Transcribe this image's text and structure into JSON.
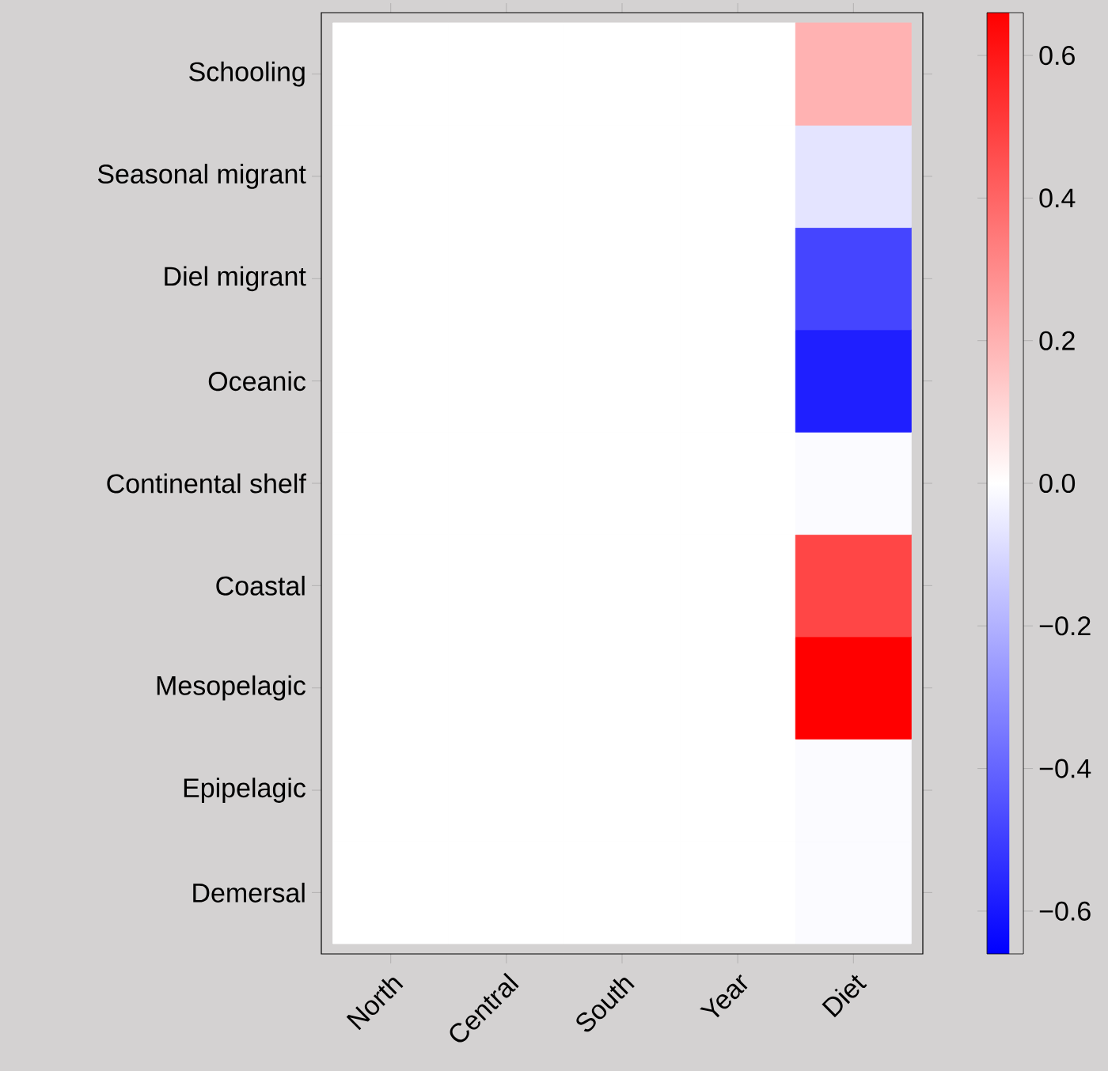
{
  "chart_data": {
    "type": "heatmap",
    "categories": [
      "North",
      "Central",
      "South",
      "Year",
      "Diet"
    ],
    "y_categories": [
      "Schooling",
      "Seasonal migrant",
      "Diel migrant",
      "Oceanic",
      "Continental shelf",
      "Coastal",
      "Mesopelagic",
      "Epipelagic",
      "Demersal"
    ],
    "cells": [
      [
        0,
        0,
        0,
        0,
        0.2
      ],
      [
        0,
        0,
        0,
        0,
        -0.07
      ],
      [
        0,
        0,
        0,
        0,
        -0.48
      ],
      [
        0,
        0,
        0,
        0,
        -0.58
      ],
      [
        0,
        0,
        0,
        0,
        -0.01
      ],
      [
        0,
        0,
        0,
        0,
        0.48
      ],
      [
        0,
        0,
        0,
        0,
        0.66
      ],
      [
        0,
        0,
        0,
        0,
        -0.01
      ],
      [
        0,
        0,
        0,
        0,
        -0.01
      ]
    ],
    "clim": [
      -0.66,
      0.66
    ],
    "cticks": [
      {
        "value": -0.6,
        "label": "−0.6"
      },
      {
        "value": -0.4,
        "label": "−0.4"
      },
      {
        "value": -0.2,
        "label": "−0.2"
      },
      {
        "value": 0,
        "label": "0.0"
      },
      0.2,
      0.4,
      0.6
    ]
  }
}
